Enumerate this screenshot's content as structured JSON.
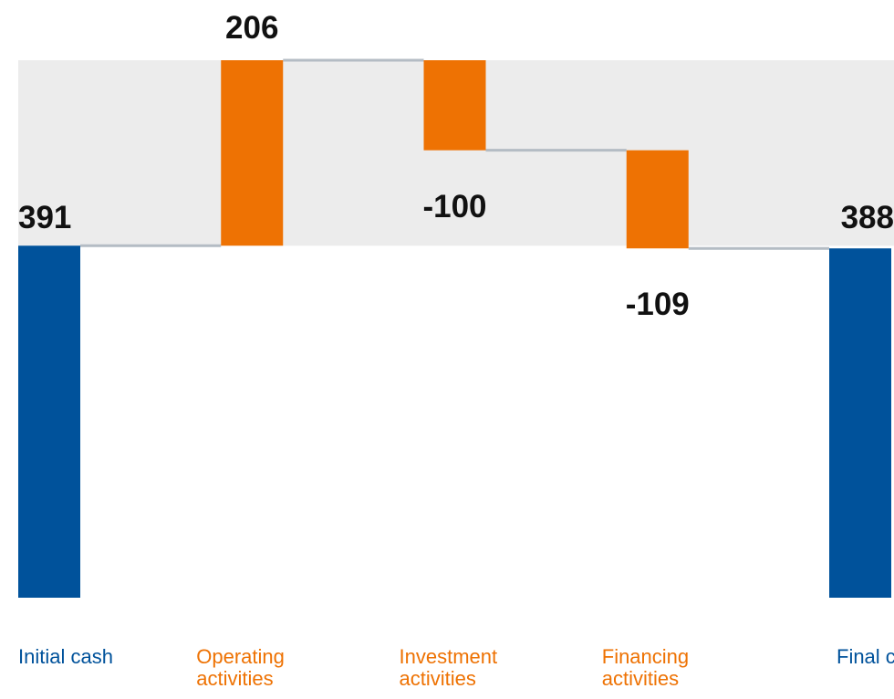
{
  "chart_data": {
    "type": "waterfall",
    "categories": [
      "Initial cash",
      "Operating activities",
      "Investment activities",
      "Financing activities",
      "Final cash"
    ],
    "values": [
      391,
      206,
      -100,
      -109,
      388
    ],
    "total_color": "#00529b",
    "delta_color": "#ee7203",
    "connector_color": "#b4bcc4",
    "band_color": "#ececec"
  }
}
